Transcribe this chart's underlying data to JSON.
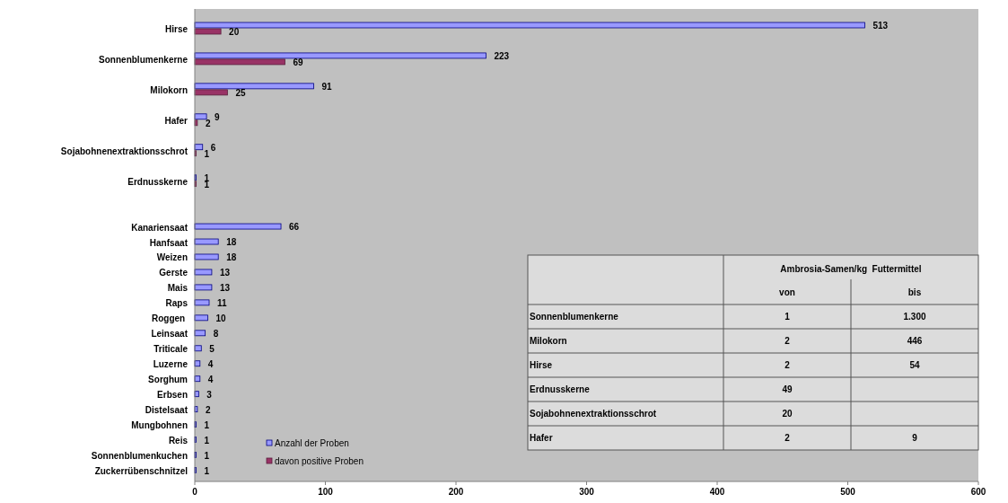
{
  "chart_data": [
    {
      "type": "bar",
      "orientation": "horizontal",
      "categories": [
        "Hirse",
        null,
        "Sonnenblumenkerne",
        null,
        "Milokorn",
        null,
        "Hafer",
        null,
        "Sojabohnenextraktionsschrot",
        null,
        "Erdnusskerne",
        null,
        null,
        "Kanariensaat",
        "Hanfsaat",
        "Weizen",
        "Gerste",
        "Mais",
        "Raps",
        "Roggen ",
        "Leinsaat",
        "Triticale",
        "Luzerne",
        "Sorghum",
        "Erbsen",
        "Distelsaat",
        "Mungbohnen",
        "Reis",
        "Sonnenblumenkuchen",
        "Zuckerrübenschnitzel"
      ],
      "series": [
        {
          "name": "Anzahl der Proben",
          "color": "#9999ff",
          "values": [
            513,
            null,
            223,
            null,
            91,
            null,
            9,
            null,
            6,
            null,
            1,
            null,
            null,
            66,
            18,
            18,
            13,
            13,
            11,
            10,
            8,
            5,
            4,
            4,
            3,
            2,
            1,
            1,
            1,
            1
          ]
        },
        {
          "name": "davon positive Proben",
          "color": "#993366",
          "values": [
            20,
            null,
            69,
            null,
            25,
            null,
            2,
            null,
            1,
            null,
            1,
            null,
            null,
            null,
            null,
            null,
            null,
            null,
            null,
            null,
            null,
            null,
            null,
            null,
            null,
            null,
            null,
            null,
            null,
            null
          ]
        }
      ],
      "xlim": [
        0,
        600
      ],
      "xticks": [
        0,
        100,
        200,
        300,
        400,
        500,
        600
      ],
      "grid": false,
      "legend": "bottom left",
      "data_labels": true
    },
    {
      "type": "other",
      "title": "Ambrosia-Samen/kg  Futtermittel",
      "categories": [
        "Sonnenblumenkerne",
        "Milokorn",
        "Hirse",
        "Erdnusskerne",
        "Sojabohnenextraktionsschrot",
        "Hafer"
      ],
      "series": [
        {
          "name": "von",
          "values": [
            1,
            2,
            2,
            49,
            20,
            2
          ],
          "value_labels": [
            "1",
            "2",
            "2",
            "49",
            "20",
            "2"
          ]
        },
        {
          "name": "bis",
          "values": [
            1300,
            446,
            54,
            null,
            null,
            9
          ],
          "value_labels": [
            "1.300",
            "446",
            "54",
            null,
            null,
            "9"
          ]
        }
      ]
    }
  ]
}
